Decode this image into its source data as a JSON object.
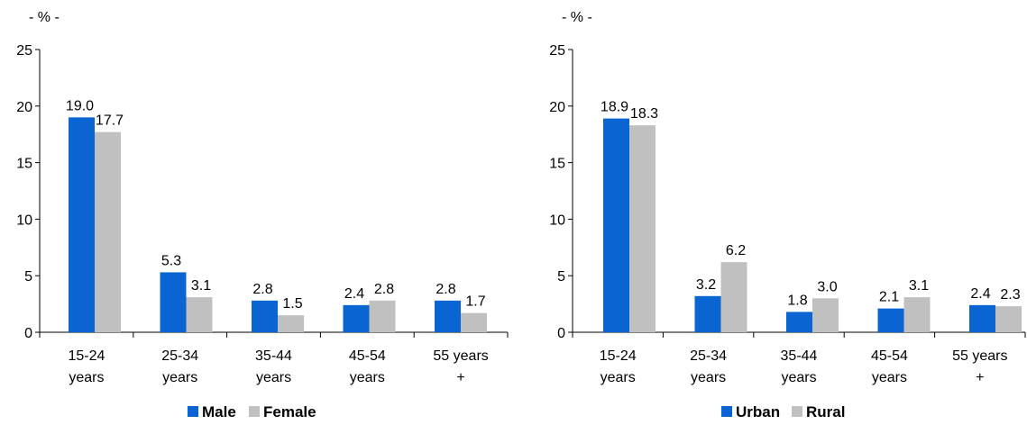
{
  "chart_data": [
    {
      "type": "bar",
      "unit_label": "- % -",
      "categories": [
        [
          "15-24",
          "years"
        ],
        [
          "25-34",
          "years"
        ],
        [
          "35-44",
          "years"
        ],
        [
          "45-54",
          "years"
        ],
        [
          "55 years",
          "+"
        ]
      ],
      "series": [
        {
          "name": "Male",
          "values": [
            19.0,
            5.3,
            2.8,
            2.4,
            2.8
          ],
          "labels": [
            "19.0",
            "5.3",
            "2.8",
            "2.4",
            "2.8"
          ],
          "color": "#0a64d2"
        },
        {
          "name": "Female",
          "values": [
            17.7,
            3.1,
            1.5,
            2.8,
            1.7
          ],
          "labels": [
            "17.7",
            "3.1",
            "1.5",
            "2.8",
            "1.7"
          ],
          "color": "#c0c0c0"
        }
      ],
      "ylim": [
        0,
        25
      ],
      "yticks": [
        "0",
        "5",
        "10",
        "15",
        "20",
        "25"
      ],
      "grid": false,
      "legend": "bottom"
    },
    {
      "type": "bar",
      "unit_label": "- % -",
      "categories": [
        [
          "15-24",
          "years"
        ],
        [
          "25-34",
          "years"
        ],
        [
          "35-44",
          "years"
        ],
        [
          "45-54",
          "years"
        ],
        [
          "55 years",
          "+"
        ]
      ],
      "series": [
        {
          "name": "Urban",
          "values": [
            18.9,
            3.2,
            1.8,
            2.1,
            2.4
          ],
          "labels": [
            "18.9",
            "3.2",
            "1.8",
            "2.1",
            "2.4"
          ],
          "color": "#0a64d2"
        },
        {
          "name": "Rural",
          "values": [
            18.3,
            6.2,
            3.0,
            3.1,
            2.3
          ],
          "labels": [
            "18.3",
            "6.2",
            "3.0",
            "3.1",
            "2.3"
          ],
          "color": "#c0c0c0"
        }
      ],
      "ylim": [
        0,
        25
      ],
      "yticks": [
        "0",
        "5",
        "10",
        "15",
        "20",
        "25"
      ],
      "grid": false,
      "legend": "bottom"
    }
  ]
}
